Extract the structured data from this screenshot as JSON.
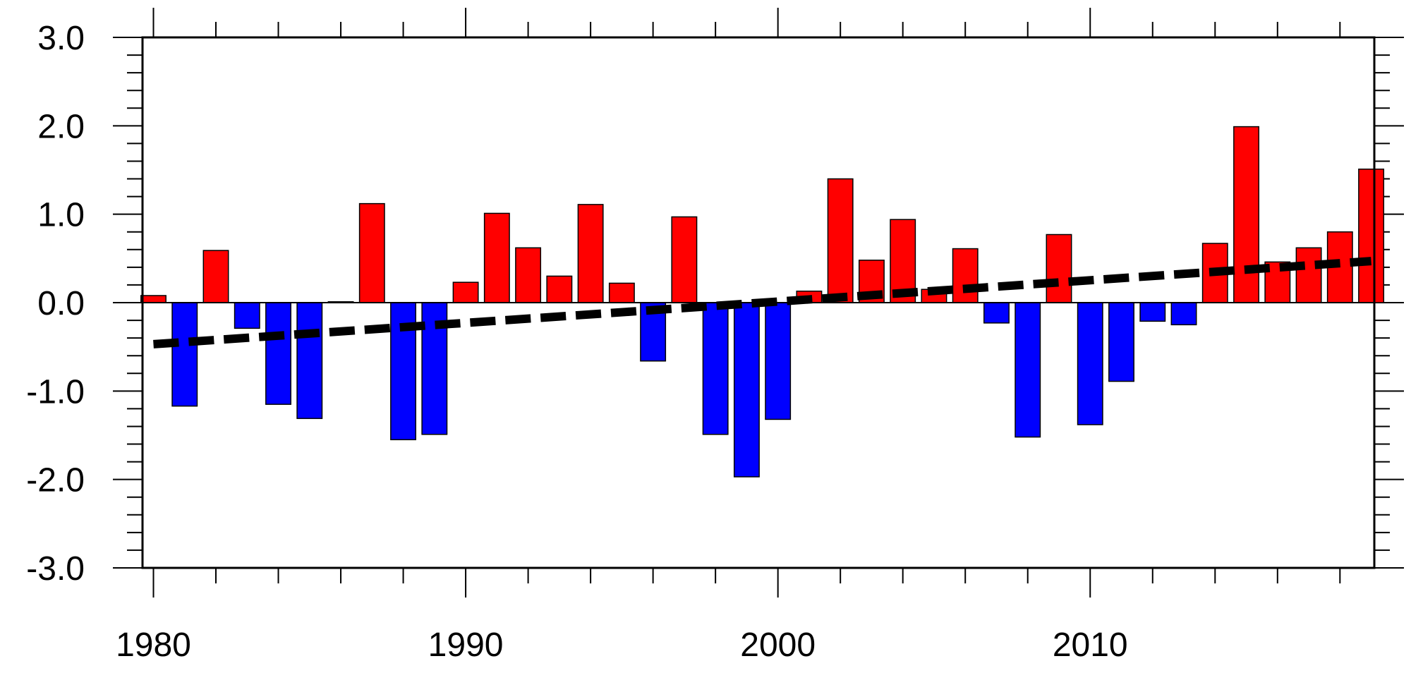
{
  "chart_data": {
    "type": "bar",
    "title": "",
    "xlabel": "",
    "ylabel": "",
    "x": [
      1980,
      1981,
      1982,
      1983,
      1984,
      1985,
      1986,
      1987,
      1988,
      1989,
      1990,
      1991,
      1992,
      1993,
      1994,
      1995,
      1996,
      1997,
      1998,
      1999,
      2000,
      2001,
      2002,
      2003,
      2004,
      2005,
      2006,
      2007,
      2008,
      2009,
      2010,
      2011,
      2012,
      2013,
      2014,
      2015,
      2016,
      2017,
      2018,
      2019
    ],
    "values": [
      0.08,
      -1.17,
      0.59,
      -0.29,
      -1.15,
      -1.31,
      0.01,
      1.12,
      -1.55,
      -1.49,
      0.23,
      1.01,
      0.62,
      0.3,
      1.11,
      0.22,
      -0.66,
      0.97,
      -1.49,
      -1.97,
      -1.32,
      0.13,
      1.4,
      0.48,
      0.94,
      0.15,
      0.61,
      -0.23,
      -1.52,
      0.77,
      -1.38,
      -0.89,
      -0.21,
      -0.25,
      0.67,
      1.99,
      0.46,
      0.62,
      0.8,
      1.51
    ],
    "positive_color": "#ff0000",
    "negative_color": "#0000ff",
    "trend_line": {
      "style": "dashed",
      "color": "#000000",
      "start": [
        1980,
        -0.47
      ],
      "end": [
        2019,
        0.47
      ]
    },
    "xlim": [
      1979.65,
      2019.1
    ],
    "ylim": [
      -3.0,
      3.0
    ],
    "x_major_ticks": [
      1980,
      1990,
      2000,
      2010
    ],
    "x_minor_step": 2,
    "x_tick_labels": [
      "1980",
      "1990",
      "2000",
      "2010"
    ],
    "y_major_ticks": [
      -3.0,
      -2.0,
      -1.0,
      0.0,
      1.0,
      2.0,
      3.0
    ],
    "y_minor_step": 0.2,
    "y_tick_labels": [
      "-3.0",
      "-2.0",
      "-1.0",
      "0.0",
      "1.0",
      "2.0",
      "3.0"
    ],
    "grid": false,
    "legend": "none"
  }
}
